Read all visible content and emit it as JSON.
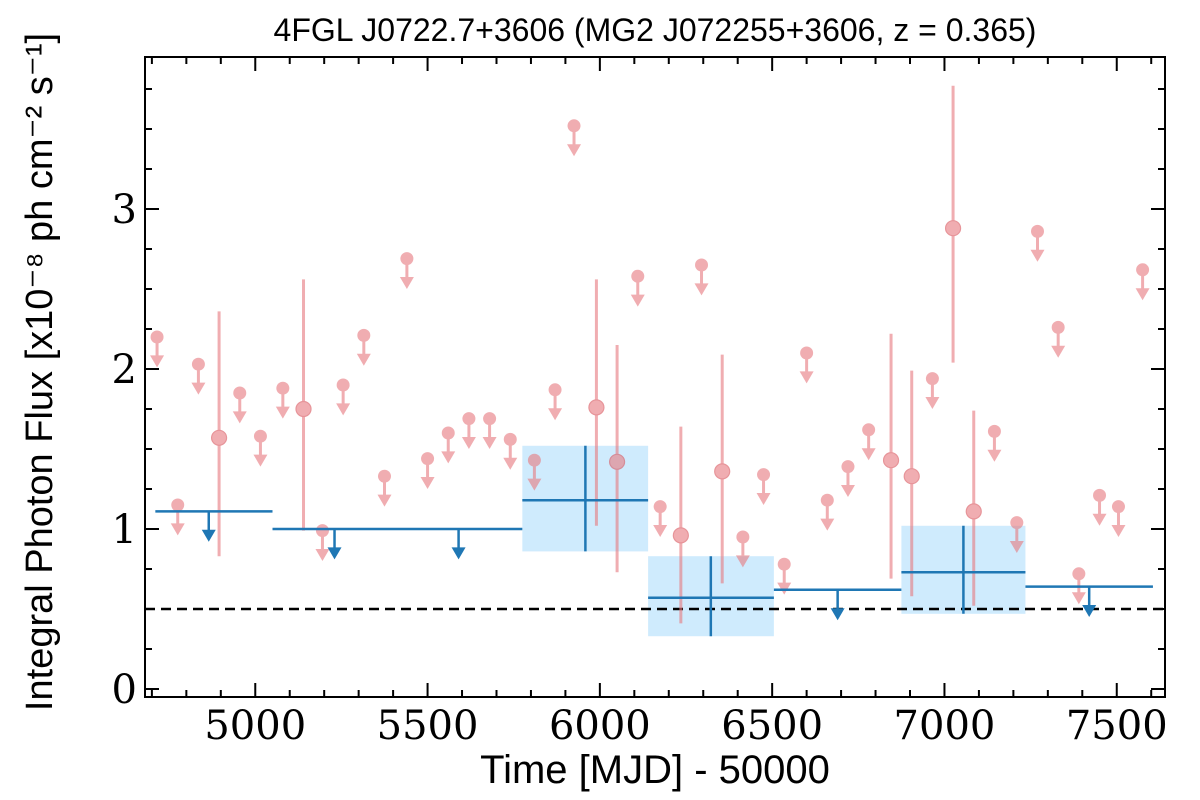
{
  "chart_data": {
    "type": "scatter",
    "title": "4FGL J0722.7+3606 (MG2 J072255+3606, z = 0.365)",
    "xlabel": "Time [MJD] - 50000",
    "ylabel": "Integral Photon Flux [x10⁻⁸ ph cm⁻² s⁻¹]",
    "xlim": [
      4680,
      7640
    ],
    "ylim": [
      -0.05,
      3.95
    ],
    "xticks": [
      5000,
      5500,
      6000,
      6500,
      7000,
      7500
    ],
    "xtick_labels": [
      "5000",
      "5500",
      "6000",
      "6500",
      "7000",
      "7500"
    ],
    "yticks": [
      0,
      1,
      2,
      3
    ],
    "ytick_labels": [
      "0",
      "1",
      "2",
      "3"
    ],
    "reference_level": 0.5,
    "colors": {
      "short_bins": "#e77c82",
      "long_bins": "#1f77b4",
      "long_bins_error_band": "#87cefa",
      "reference_line": "#000000"
    },
    "series": [
      {
        "kind": "upper_limits",
        "points": [
          {
            "x": 4715,
            "y": 2.2
          },
          {
            "x": 4775,
            "y": 1.15
          },
          {
            "x": 4835,
            "y": 2.03
          },
          {
            "x": 4955,
            "y": 1.85
          },
          {
            "x": 5015,
            "y": 1.58
          },
          {
            "x": 5080,
            "y": 1.88
          },
          {
            "x": 5195,
            "y": 0.99
          },
          {
            "x": 5255,
            "y": 1.9
          },
          {
            "x": 5315,
            "y": 2.21
          },
          {
            "x": 5375,
            "y": 1.33
          },
          {
            "x": 5440,
            "y": 2.69
          },
          {
            "x": 5500,
            "y": 1.44
          },
          {
            "x": 5560,
            "y": 1.6
          },
          {
            "x": 5620,
            "y": 1.69
          },
          {
            "x": 5680,
            "y": 1.69
          },
          {
            "x": 5740,
            "y": 1.56
          },
          {
            "x": 5810,
            "y": 1.43
          },
          {
            "x": 5870,
            "y": 1.87
          },
          {
            "x": 5925,
            "y": 3.52
          },
          {
            "x": 6110,
            "y": 2.58
          },
          {
            "x": 6175,
            "y": 1.14
          },
          {
            "x": 6295,
            "y": 2.65
          },
          {
            "x": 6415,
            "y": 0.95
          },
          {
            "x": 6475,
            "y": 1.34
          },
          {
            "x": 6535,
            "y": 0.78
          },
          {
            "x": 6600,
            "y": 2.1
          },
          {
            "x": 6660,
            "y": 1.18
          },
          {
            "x": 6720,
            "y": 1.39
          },
          {
            "x": 6780,
            "y": 1.62
          },
          {
            "x": 6965,
            "y": 1.94
          },
          {
            "x": 7145,
            "y": 1.61
          },
          {
            "x": 7210,
            "y": 1.04
          },
          {
            "x": 7270,
            "y": 2.86
          },
          {
            "x": 7330,
            "y": 2.26
          },
          {
            "x": 7390,
            "y": 0.72
          },
          {
            "x": 7450,
            "y": 1.21
          },
          {
            "x": 7505,
            "y": 1.14
          },
          {
            "x": 7575,
            "y": 2.62
          }
        ]
      },
      {
        "kind": "detections",
        "points": [
          {
            "x": 4895,
            "y": 1.57,
            "y_low": 0.83,
            "y_high": 2.36
          },
          {
            "x": 5140,
            "y": 1.75,
            "y_low": 0.99,
            "y_high": 2.56
          },
          {
            "x": 5990,
            "y": 1.76,
            "y_low": 1.02,
            "y_high": 2.56
          },
          {
            "x": 6050,
            "y": 1.42,
            "y_low": 0.73,
            "y_high": 2.15
          },
          {
            "x": 6235,
            "y": 0.96,
            "y_low": 0.41,
            "y_high": 1.64
          },
          {
            "x": 6355,
            "y": 1.36,
            "y_low": 0.66,
            "y_high": 2.09
          },
          {
            "x": 6845,
            "y": 1.43,
            "y_low": 0.69,
            "y_high": 2.22
          },
          {
            "x": 6905,
            "y": 1.33,
            "y_low": 0.58,
            "y_high": 1.99
          },
          {
            "x": 7025,
            "y": 2.88,
            "y_low": 2.04,
            "y_high": 3.77
          },
          {
            "x": 7085,
            "y": 1.11,
            "y_low": 0.52,
            "y_high": 1.74
          }
        ]
      },
      {
        "kind": "long_bin_upper_limits",
        "bins": [
          {
            "x_start": 4710,
            "x_end": 5050,
            "x_arrow": 4865,
            "y": 1.11
          },
          {
            "x_start": 5050,
            "x_end": 5775,
            "x_arrow": 5230,
            "y": 1.0
          },
          {
            "x_start": 5050,
            "x_end": 5775,
            "x_arrow": 5590,
            "y": 1.0
          },
          {
            "x_start": 6505,
            "x_end": 6875,
            "x_arrow": 6690,
            "y": 0.62
          },
          {
            "x_start": 7235,
            "x_end": 7605,
            "x_arrow": 7420,
            "y": 0.64
          }
        ]
      },
      {
        "kind": "long_bin_detections",
        "bins": [
          {
            "x_start": 5775,
            "x_end": 6140,
            "x": 5958,
            "y": 1.18,
            "y_low": 0.86,
            "y_high": 1.52
          },
          {
            "x_start": 6140,
            "x_end": 6505,
            "x": 6322,
            "y": 0.57,
            "y_low": 0.33,
            "y_high": 0.83
          },
          {
            "x_start": 6875,
            "x_end": 7235,
            "x": 7055,
            "y": 0.73,
            "y_low": 0.47,
            "y_high": 1.02
          }
        ]
      }
    ]
  }
}
